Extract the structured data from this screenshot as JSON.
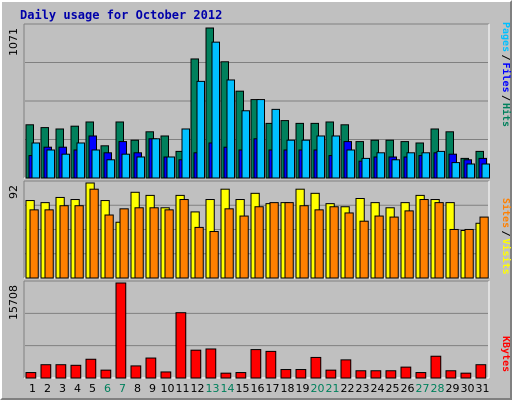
{
  "colors": {
    "background": "#c0c0c0",
    "title": "#0000aa",
    "hits": "#00805c",
    "files": "#0000ff",
    "pages": "#00c0ff",
    "visits": "#ffff00",
    "sites": "#ff8000",
    "kbytes": "#ff0000",
    "weekend_day": "#00805c",
    "weekday": "#000000"
  },
  "chart_data": [
    {
      "type": "bar",
      "panel": "hits_files_pages",
      "title": "Daily usage for October 2012",
      "ymax_label": "1071",
      "ymax": 1071,
      "side_labels": [
        "Pages",
        "Files",
        "Hits"
      ],
      "categories": [
        "1",
        "2",
        "3",
        "4",
        "5",
        "6",
        "7",
        "8",
        "9",
        "10",
        "11",
        "12",
        "13",
        "14",
        "15",
        "16",
        "17",
        "18",
        "19",
        "20",
        "21",
        "22",
        "23",
        "24",
        "25",
        "26",
        "27",
        "28",
        "29",
        "30",
        "31"
      ],
      "series": [
        {
          "name": "Hits",
          "values": [
            380,
            360,
            350,
            370,
            400,
            230,
            400,
            270,
            330,
            300,
            190,
            850,
            1071,
            830,
            620,
            560,
            390,
            410,
            390,
            390,
            400,
            380,
            260,
            270,
            270,
            260,
            250,
            350,
            330,
            140,
            190
          ]
        },
        {
          "name": "Files",
          "values": [
            160,
            220,
            220,
            200,
            300,
            180,
            260,
            180,
            280,
            150,
            130,
            180,
            250,
            220,
            200,
            280,
            200,
            200,
            200,
            200,
            160,
            260,
            120,
            150,
            150,
            150,
            160,
            180,
            170,
            130,
            140
          ]
        },
        {
          "name": "Pages",
          "values": [
            250,
            200,
            170,
            250,
            200,
            130,
            170,
            150,
            280,
            150,
            350,
            690,
            970,
            700,
            480,
            560,
            490,
            270,
            270,
            300,
            300,
            200,
            140,
            180,
            130,
            180,
            180,
            190,
            110,
            100,
            100
          ]
        }
      ]
    },
    {
      "type": "bar",
      "panel": "visits_sites",
      "ymax_label": "92",
      "ymax": 92,
      "side_labels": [
        "Sites",
        "Visits"
      ],
      "categories": [
        "1",
        "2",
        "3",
        "4",
        "5",
        "6",
        "7",
        "8",
        "9",
        "10",
        "11",
        "12",
        "13",
        "14",
        "15",
        "16",
        "17",
        "18",
        "19",
        "20",
        "21",
        "22",
        "23",
        "24",
        "25",
        "26",
        "27",
        "28",
        "29",
        "30",
        "31"
      ],
      "series": [
        {
          "name": "Visits",
          "values": [
            75,
            73,
            78,
            76,
            92,
            75,
            54,
            83,
            80,
            68,
            80,
            64,
            76,
            86,
            76,
            82,
            72,
            73,
            86,
            82,
            72,
            69,
            77,
            73,
            68,
            73,
            80,
            76,
            73,
            46,
            53
          ]
        },
        {
          "name": "Sites",
          "values": [
            66,
            66,
            70,
            70,
            86,
            61,
            67,
            68,
            68,
            66,
            76,
            49,
            45,
            67,
            60,
            69,
            73,
            73,
            70,
            66,
            69,
            63,
            55,
            60,
            59,
            65,
            76,
            73,
            47,
            47,
            59
          ]
        }
      ]
    },
    {
      "type": "bar",
      "panel": "kbytes",
      "ymax_label": "15708",
      "ymax": 15708,
      "side_labels": [
        "KBytes"
      ],
      "categories": [
        "1",
        "2",
        "3",
        "4",
        "5",
        "6",
        "7",
        "8",
        "9",
        "10",
        "11",
        "12",
        "13",
        "14",
        "15",
        "16",
        "17",
        "18",
        "19",
        "20",
        "21",
        "22",
        "23",
        "24",
        "25",
        "26",
        "27",
        "28",
        "29",
        "30",
        "31"
      ],
      "series": [
        {
          "name": "KBytes",
          "values": [
            900,
            2200,
            2200,
            2100,
            3100,
            1300,
            15708,
            2000,
            3300,
            1000,
            10800,
            4600,
            4800,
            800,
            900,
            4700,
            4400,
            1400,
            1400,
            3400,
            1300,
            3000,
            1200,
            1200,
            1200,
            1800,
            900,
            3600,
            1200,
            800,
            2200
          ]
        }
      ]
    }
  ],
  "x_axis": {
    "days": [
      "1",
      "2",
      "3",
      "4",
      "5",
      "6",
      "7",
      "8",
      "9",
      "10",
      "11",
      "12",
      "13",
      "14",
      "15",
      "16",
      "17",
      "18",
      "19",
      "20",
      "21",
      "22",
      "23",
      "24",
      "25",
      "26",
      "27",
      "28",
      "29",
      "30",
      "31"
    ],
    "weekend_days": [
      "6",
      "7",
      "13",
      "14",
      "20",
      "21",
      "27",
      "28"
    ]
  }
}
